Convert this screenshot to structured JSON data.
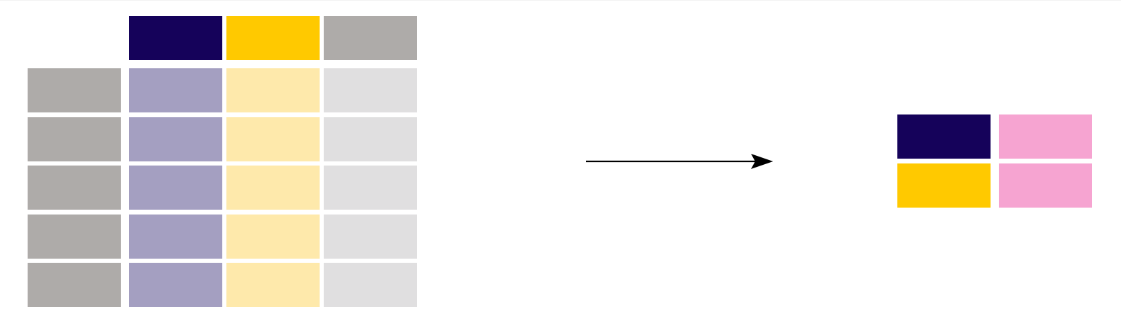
{
  "colors": {
    "background": "#ffffff",
    "index_column": "#aeaba9",
    "variable_1_header": "#15025a",
    "variable_1_cells": "#a49fc1",
    "variable_2_header": "#ffc900",
    "variable_2_cells": "#fee9ab",
    "variable_3_header": "#aeaba9",
    "variable_3_cells": "#e0dfe0",
    "result_accent": "#f6a4d1",
    "arrow": "#000000"
  },
  "source_table": {
    "header_cells": [
      "variable_1_header",
      "variable_2_header",
      "variable_3_header"
    ],
    "row_count": 5,
    "row_cells": [
      "index_column",
      "variable_1_cells",
      "variable_2_cells",
      "variable_3_cells"
    ]
  },
  "result_table": {
    "rows": [
      [
        "variable_1_header",
        "result_accent"
      ],
      [
        "variable_2_header",
        "result_accent"
      ]
    ]
  },
  "arrow": {
    "direction": "right"
  }
}
